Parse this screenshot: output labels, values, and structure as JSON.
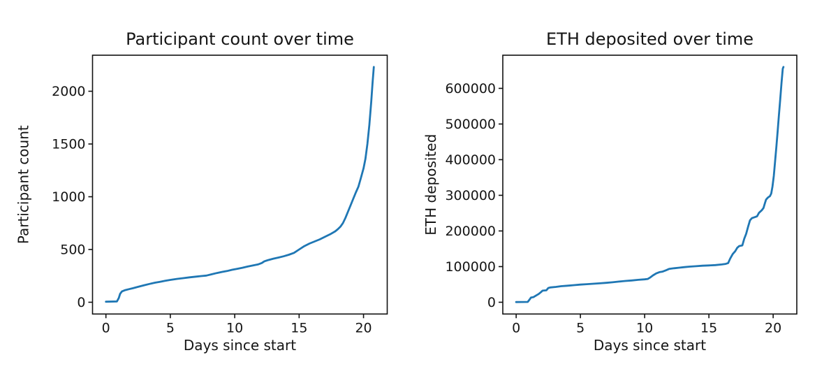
{
  "figure": {
    "background": "#ffffff",
    "text_color": "#151515",
    "spine_color": "#111111"
  },
  "chart_data": [
    {
      "type": "line",
      "title": "Participant count over time",
      "xlabel": "Days since start",
      "ylabel": "Participant count",
      "x_ticks": [
        0,
        5,
        10,
        15,
        20
      ],
      "y_ticks": [
        0,
        500,
        1000,
        1500,
        2000
      ],
      "xlim": [
        -1.04,
        21.84
      ],
      "ylim": [
        -111.5,
        2341.5
      ],
      "grid": false,
      "legend": null,
      "line_color": "#1f77b4",
      "series": [
        {
          "name": "participant-count",
          "points": [
            [
              0,
              5
            ],
            [
              0.85,
              8
            ],
            [
              1.0,
              40
            ],
            [
              1.1,
              80
            ],
            [
              1.25,
              103
            ],
            [
              1.5,
              115
            ],
            [
              1.8,
              124
            ],
            [
              2.1,
              133
            ],
            [
              2.5,
              146
            ],
            [
              3.0,
              162
            ],
            [
              3.4,
              174
            ],
            [
              3.8,
              185
            ],
            [
              4.2,
              194
            ],
            [
              4.6,
              203
            ],
            [
              5.0,
              212
            ],
            [
              5.5,
              221
            ],
            [
              6.0,
              228
            ],
            [
              6.5,
              236
            ],
            [
              7.0,
              243
            ],
            [
              7.4,
              248
            ],
            [
              7.8,
              253
            ],
            [
              8.2,
              265
            ],
            [
              8.6,
              277
            ],
            [
              9.0,
              287
            ],
            [
              9.4,
              296
            ],
            [
              9.8,
              308
            ],
            [
              10.2,
              317
            ],
            [
              10.6,
              327
            ],
            [
              11.0,
              338
            ],
            [
              11.4,
              348
            ],
            [
              11.8,
              358
            ],
            [
              12.1,
              372
            ],
            [
              12.3,
              388
            ],
            [
              12.6,
              400
            ],
            [
              13.0,
              413
            ],
            [
              13.4,
              424
            ],
            [
              13.8,
              436
            ],
            [
              14.2,
              450
            ],
            [
              14.6,
              468
            ],
            [
              15.0,
              500
            ],
            [
              15.4,
              532
            ],
            [
              15.8,
              556
            ],
            [
              16.2,
              576
            ],
            [
              16.6,
              596
            ],
            [
              17.0,
              620
            ],
            [
              17.4,
              644
            ],
            [
              17.8,
              672
            ],
            [
              18.0,
              692
            ],
            [
              18.2,
              716
            ],
            [
              18.4,
              750
            ],
            [
              18.6,
              800
            ],
            [
              18.8,
              860
            ],
            [
              19.0,
              920
            ],
            [
              19.2,
              980
            ],
            [
              19.4,
              1040
            ],
            [
              19.6,
              1095
            ],
            [
              19.8,
              1180
            ],
            [
              20.0,
              1270
            ],
            [
              20.15,
              1360
            ],
            [
              20.3,
              1500
            ],
            [
              20.45,
              1680
            ],
            [
              20.6,
              1900
            ],
            [
              20.7,
              2080
            ],
            [
              20.8,
              2230
            ]
          ]
        }
      ]
    },
    {
      "type": "line",
      "title": "ETH deposited over time",
      "xlabel": "Days since start",
      "ylabel": "ETH deposited",
      "x_ticks": [
        0,
        5,
        10,
        15,
        20
      ],
      "y_ticks": [
        0,
        100000,
        200000,
        300000,
        400000,
        500000,
        600000
      ],
      "xlim": [
        -1.04,
        21.84
      ],
      "ylim": [
        -33000,
        693000
      ],
      "grid": false,
      "legend": null,
      "line_color": "#1f77b4",
      "series": [
        {
          "name": "eth-deposited",
          "points": [
            [
              0,
              500
            ],
            [
              0.9,
              1000
            ],
            [
              1.05,
              8000
            ],
            [
              1.15,
              13000
            ],
            [
              1.35,
              14500
            ],
            [
              1.55,
              19000
            ],
            [
              1.75,
              23000
            ],
            [
              1.95,
              29000
            ],
            [
              2.05,
              32500
            ],
            [
              2.35,
              33500
            ],
            [
              2.5,
              40000
            ],
            [
              2.65,
              41500
            ],
            [
              3.1,
              43000
            ],
            [
              3.5,
              45000
            ],
            [
              4.0,
              46500
            ],
            [
              4.5,
              48000
            ],
            [
              5.0,
              49500
            ],
            [
              5.5,
              50800
            ],
            [
              6.0,
              51800
            ],
            [
              6.5,
              53000
            ],
            [
              7.0,
              54500
            ],
            [
              7.5,
              56000
            ],
            [
              8.0,
              58000
            ],
            [
              8.5,
              59800
            ],
            [
              9.0,
              61200
            ],
            [
              9.5,
              62800
            ],
            [
              10.0,
              64200
            ],
            [
              10.25,
              65500
            ],
            [
              10.45,
              70000
            ],
            [
              10.65,
              75500
            ],
            [
              10.9,
              81000
            ],
            [
              11.15,
              84500
            ],
            [
              11.4,
              86000
            ],
            [
              11.65,
              89500
            ],
            [
              11.9,
              93500
            ],
            [
              12.3,
              95500
            ],
            [
              12.7,
              97000
            ],
            [
              13.1,
              98500
            ],
            [
              13.5,
              100000
            ],
            [
              14.0,
              101200
            ],
            [
              14.5,
              102400
            ],
            [
              15.0,
              103200
            ],
            [
              15.5,
              104200
            ],
            [
              16.0,
              106000
            ],
            [
              16.3,
              107500
            ],
            [
              16.5,
              110000
            ],
            [
              16.65,
              122000
            ],
            [
              16.85,
              135000
            ],
            [
              17.05,
              143500
            ],
            [
              17.2,
              152500
            ],
            [
              17.35,
              157500
            ],
            [
              17.6,
              159500
            ],
            [
              17.75,
              178000
            ],
            [
              17.9,
              192000
            ],
            [
              18.05,
              212000
            ],
            [
              18.2,
              230000
            ],
            [
              18.35,
              236000
            ],
            [
              18.55,
              238500
            ],
            [
              18.75,
              241000
            ],
            [
              18.9,
              251000
            ],
            [
              19.1,
              257500
            ],
            [
              19.25,
              264500
            ],
            [
              19.35,
              277000
            ],
            [
              19.45,
              288000
            ],
            [
              19.6,
              294000
            ],
            [
              19.75,
              297500
            ],
            [
              19.85,
              305000
            ],
            [
              19.95,
              325000
            ],
            [
              20.05,
              355000
            ],
            [
              20.15,
              395000
            ],
            [
              20.25,
              435000
            ],
            [
              20.35,
              480000
            ],
            [
              20.45,
              525000
            ],
            [
              20.55,
              570000
            ],
            [
              20.65,
              615000
            ],
            [
              20.75,
              655000
            ],
            [
              20.8,
              660000
            ]
          ]
        }
      ]
    }
  ]
}
